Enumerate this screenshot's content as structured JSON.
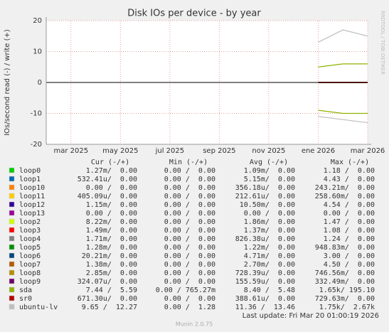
{
  "chart_data": {
    "type": "line",
    "title": "Disk IOs per device - by year",
    "y_label": "IOs/second read (-) / write (+)",
    "side_text": "RRDTOOL / TOBI OETIKER",
    "xlim": [
      "2025-02",
      "2026-03"
    ],
    "xticks": [
      {
        "value": "2025-03",
        "label": "mar 2025"
      },
      {
        "value": "2025-05",
        "label": "may 2025"
      },
      {
        "value": "2025-07",
        "label": "jul 2025"
      },
      {
        "value": "2025-09",
        "label": "sep 2025"
      },
      {
        "value": "2025-11",
        "label": "nov 2025"
      },
      {
        "value": "2026-01",
        "label": "ene 2026"
      },
      {
        "value": "2026-03",
        "label": "mar 2026"
      }
    ],
    "ylim": [
      -20,
      20
    ],
    "yticks": [
      -20,
      -10,
      0,
      10,
      20
    ],
    "grid": true,
    "x": [
      "2026-01",
      "2026-02",
      "2026-03"
    ],
    "columns": [
      "Cur (-/+)",
      "Min (-/+)",
      "Avg (-/+)",
      "Max (-/+)"
    ],
    "series": [
      {
        "name": "loop0",
        "color": "#00cc00",
        "values": [
          0,
          0,
          0
        ],
        "read_values": [
          0,
          0,
          0
        ],
        "stats": [
          "1.27m/  0.00",
          "0.00 /  0.00",
          "1.09m/  0.00",
          "1.18 /  0.00"
        ]
      },
      {
        "name": "loop1",
        "color": "#0066b3",
        "values": [
          0,
          0,
          0
        ],
        "read_values": [
          0,
          0,
          0
        ],
        "stats": [
          "532.41u/  0.00",
          "0.00 /  0.00",
          "5.15m/  0.00",
          "4.43 /  0.00"
        ]
      },
      {
        "name": "loop10",
        "color": "#ff8000",
        "values": [
          0,
          0,
          0
        ],
        "read_values": [
          0,
          0,
          0
        ],
        "stats": [
          "0.00 /  0.00",
          "0.00 /  0.00",
          "356.18u/  0.00",
          "243.21m/  0.00"
        ]
      },
      {
        "name": "loop11",
        "color": "#ffcc00",
        "values": [
          0,
          0,
          0
        ],
        "read_values": [
          0,
          0,
          0
        ],
        "stats": [
          "405.09u/  0.00",
          "0.00 /  0.00",
          "212.61u/  0.00",
          "258.60m/  0.00"
        ]
      },
      {
        "name": "loop12",
        "color": "#330099",
        "values": [
          0,
          0,
          0
        ],
        "read_values": [
          0,
          0,
          0
        ],
        "stats": [
          "1.15m/  0.00",
          "0.00 /  0.00",
          "10.50m/  0.00",
          "4.54 /  0.00"
        ]
      },
      {
        "name": "loop13",
        "color": "#990099",
        "values": [
          0,
          0,
          0
        ],
        "read_values": [
          0,
          0,
          0
        ],
        "stats": [
          "0.00 /  0.00",
          "0.00 /  0.00",
          "0.00 /  0.00",
          "0.00 /  0.00"
        ]
      },
      {
        "name": "loop2",
        "color": "#ccff00",
        "values": [
          0,
          0,
          0
        ],
        "read_values": [
          0,
          0,
          0
        ],
        "stats": [
          "8.22m/  0.00",
          "0.00 /  0.00",
          "1.86m/  0.00",
          "1.47 /  0.00"
        ]
      },
      {
        "name": "loop3",
        "color": "#ff0000",
        "values": [
          0,
          0,
          0
        ],
        "read_values": [
          0,
          0,
          0
        ],
        "stats": [
          "1.49m/  0.00",
          "0.00 /  0.00",
          "1.37m/  0.00",
          "1.08 /  0.00"
        ]
      },
      {
        "name": "loop4",
        "color": "#808080",
        "values": [
          0,
          0,
          0
        ],
        "read_values": [
          0,
          0,
          0
        ],
        "stats": [
          "1.71m/  0.00",
          "0.00 /  0.00",
          "826.38u/  0.00",
          "1.24 /  0.00"
        ]
      },
      {
        "name": "loop5",
        "color": "#008f00",
        "values": [
          0,
          0,
          0
        ],
        "read_values": [
          0,
          0,
          0
        ],
        "stats": [
          "1.28m/  0.00",
          "0.00 /  0.00",
          "1.22m/  0.00",
          "948.83m/  0.00"
        ]
      },
      {
        "name": "loop6",
        "color": "#00487d",
        "values": [
          0,
          0,
          0
        ],
        "read_values": [
          0,
          0,
          0
        ],
        "stats": [
          "20.21m/  0.00",
          "0.00 /  0.00",
          "4.71m/  0.00",
          "3.00 /  0.00"
        ]
      },
      {
        "name": "loop7",
        "color": "#b35a00",
        "values": [
          0,
          0,
          0
        ],
        "read_values": [
          0,
          0,
          0
        ],
        "stats": [
          "1.38m/  0.00",
          "0.00 /  0.00",
          "2.70m/  0.00",
          "4.50 /  0.00"
        ]
      },
      {
        "name": "loop8",
        "color": "#b38f00",
        "values": [
          0,
          0,
          0
        ],
        "read_values": [
          0,
          0,
          0
        ],
        "stats": [
          "2.85m/  0.00",
          "0.00 /  0.00",
          "728.39u/  0.00",
          "746.56m/  0.00"
        ]
      },
      {
        "name": "loop9",
        "color": "#6b006b",
        "values": [
          0,
          0,
          0
        ],
        "read_values": [
          0,
          0,
          0
        ],
        "stats": [
          "324.07u/  0.00",
          "0.00 /  0.00",
          "155.59u/  0.00",
          "332.49m/  0.00"
        ]
      },
      {
        "name": "sda",
        "color": "#8fb300",
        "values": [
          5,
          6,
          6
        ],
        "read_values": [
          -9,
          -10,
          -10
        ],
        "stats": [
          "7.44 /  5.59",
          "0.00 / 765.27m",
          "8.40 /  5.48",
          "1.65k/ 195.10"
        ]
      },
      {
        "name": "sr0",
        "color": "#b30000",
        "values": [
          0,
          0,
          0
        ],
        "read_values": [
          0,
          0,
          0
        ],
        "stats": [
          "671.30u/  0.00",
          "0.00 /  0.00",
          "388.61u/  0.00",
          "729.63m/  0.00"
        ]
      },
      {
        "name": "ubuntu-lv",
        "color": "#bebebe",
        "values": [
          13,
          17,
          15
        ],
        "read_values": [
          -11,
          -12,
          -13
        ],
        "stats": [
          "9.65 /  12.27",
          "0.00 /  1.28",
          "11.36 /  13.46",
          "1.75k/  2.67k"
        ]
      }
    ],
    "last_update": "Last update: Fri Mar 20 01:00:19 2026",
    "footer": "Munin 2.0.75"
  }
}
